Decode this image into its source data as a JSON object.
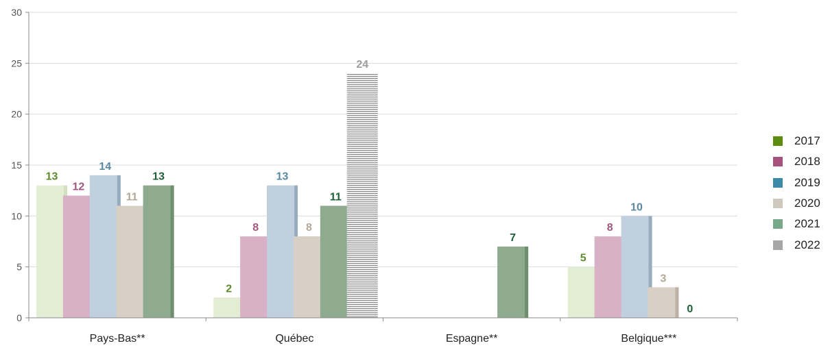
{
  "chart_data": {
    "type": "bar",
    "categories": [
      "Pays-Bas**",
      "Québec",
      "Espagne**",
      "Belgique***"
    ],
    "series": [
      {
        "name": "2017",
        "values": [
          13,
          2,
          null,
          5
        ]
      },
      {
        "name": "2018",
        "values": [
          12,
          8,
          null,
          8
        ]
      },
      {
        "name": "2019",
        "values": [
          14,
          13,
          null,
          10
        ]
      },
      {
        "name": "2020",
        "values": [
          11,
          8,
          null,
          3
        ]
      },
      {
        "name": "2021",
        "values": [
          13,
          11,
          7,
          0
        ]
      },
      {
        "name": "2022",
        "values": [
          null,
          24,
          null,
          null
        ]
      }
    ],
    "ylim": [
      0,
      30
    ],
    "yticks": [
      0,
      5,
      10,
      15,
      20,
      25,
      30
    ],
    "grid": true,
    "legend_position": "right",
    "colors": {
      "bar_fill": [
        "#e3edd4",
        "#d9b1c6",
        "#c0d0de",
        "#d9d0c5",
        "#8fab8f",
        "#9e9e9e"
      ],
      "bar_shade": [
        "#d2e0bf",
        "#b47e9b",
        "#96adc0",
        "#bcb1a4",
        "#6e8e6e",
        "#8a8a8a"
      ],
      "label": [
        "#5e8a2e",
        "#a0567f",
        "#5a8aa3",
        "#b3a898",
        "#1f5f38",
        "#9e9e9e"
      ],
      "legend": [
        "#5b8c10",
        "#a8527e",
        "#3c8aa8",
        "#cfc8bd",
        "#78a88a",
        "#a6a6a6"
      ]
    }
  }
}
